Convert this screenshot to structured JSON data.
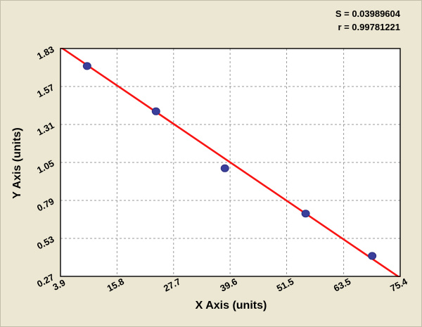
{
  "stats": {
    "s_label": "S = 0.03989604",
    "r_label": "r = 0.99781221"
  },
  "chart_data": {
    "type": "scatter",
    "title": "",
    "xlabel": "X Axis (units)",
    "ylabel": "Y Axis (units)",
    "xlim": [
      3.9,
      75.4
    ],
    "ylim": [
      0.27,
      1.83
    ],
    "x_ticks": [
      "3.9",
      "15.8",
      "27.7",
      "39.6",
      "51.5",
      "63.5",
      "75.4"
    ],
    "y_ticks": [
      "0.27",
      "0.53",
      "0.79",
      "1.05",
      "1.31",
      "1.57",
      "1.83"
    ],
    "grid": true,
    "legend": false,
    "points": [
      {
        "x": 9.5,
        "y": 1.71
      },
      {
        "x": 24.0,
        "y": 1.4
      },
      {
        "x": 38.5,
        "y": 1.01
      },
      {
        "x": 55.5,
        "y": 0.7
      },
      {
        "x": 69.5,
        "y": 0.41
      }
    ],
    "fit_line": {
      "x1": 3.9,
      "y1": 1.84,
      "x2": 75.4,
      "y2": 0.26
    },
    "annotations": [
      "S = 0.03989604",
      "r = 0.99781221"
    ],
    "colors": {
      "background": "#ece7d2",
      "plot_background": "#ffffff",
      "grid": "#9a9a9a",
      "axis_border": "#000000",
      "point_fill": "#3b3f9c",
      "point_stroke": "#2b2e7d",
      "fit_line": "#f91414",
      "text": "#000000"
    }
  }
}
